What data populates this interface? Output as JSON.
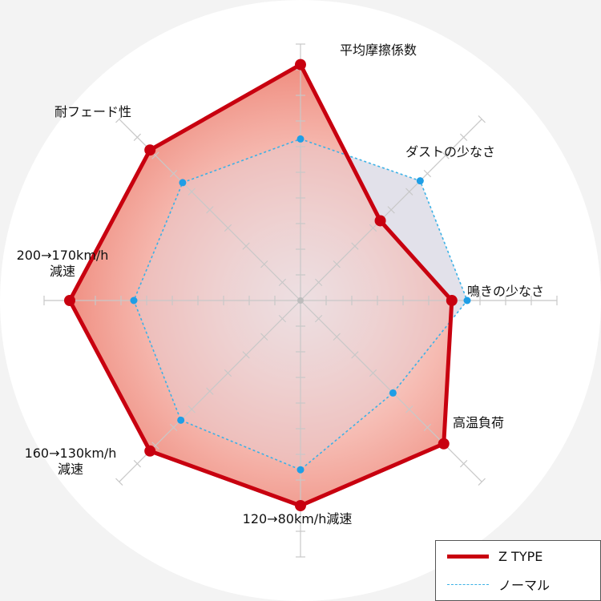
{
  "chart_data": {
    "type": "radar",
    "axes": [
      {
        "label_lines": [
          "平均摩擦係数"
        ]
      },
      {
        "label_lines": [
          "ダストの少なさ"
        ]
      },
      {
        "label_lines": [
          "鳴きの少なさ"
        ]
      },
      {
        "label_lines": [
          "高温負荷"
        ]
      },
      {
        "label_lines": [
          "120→80km/h減速"
        ]
      },
      {
        "label_lines": [
          "160→130km/h",
          "減速"
        ]
      },
      {
        "label_lines": [
          "200→170km/h",
          "減速"
        ]
      },
      {
        "label_lines": [
          "耐フェード性"
        ]
      }
    ],
    "scale_max": 10,
    "series": [
      {
        "name": "Z TYPE",
        "color": "#c8000f",
        "values": [
          9.2,
          4.4,
          5.9,
          7.9,
          8.0,
          8.3,
          9.0,
          8.3
        ]
      },
      {
        "name": "ノーマル",
        "color": "#3bb1e6",
        "values": [
          6.3,
          6.6,
          6.5,
          5.1,
          6.6,
          6.6,
          6.5,
          6.5
        ]
      }
    ],
    "legend_position": "bottom-right"
  },
  "colors": {
    "fill_gradient_inner": "#fbe0da",
    "fill_gradient_outer": "#ef8a7c",
    "normal_fill": "#d8e3ef",
    "grid": "#c8c8c8",
    "background": "#f3f3f3"
  }
}
